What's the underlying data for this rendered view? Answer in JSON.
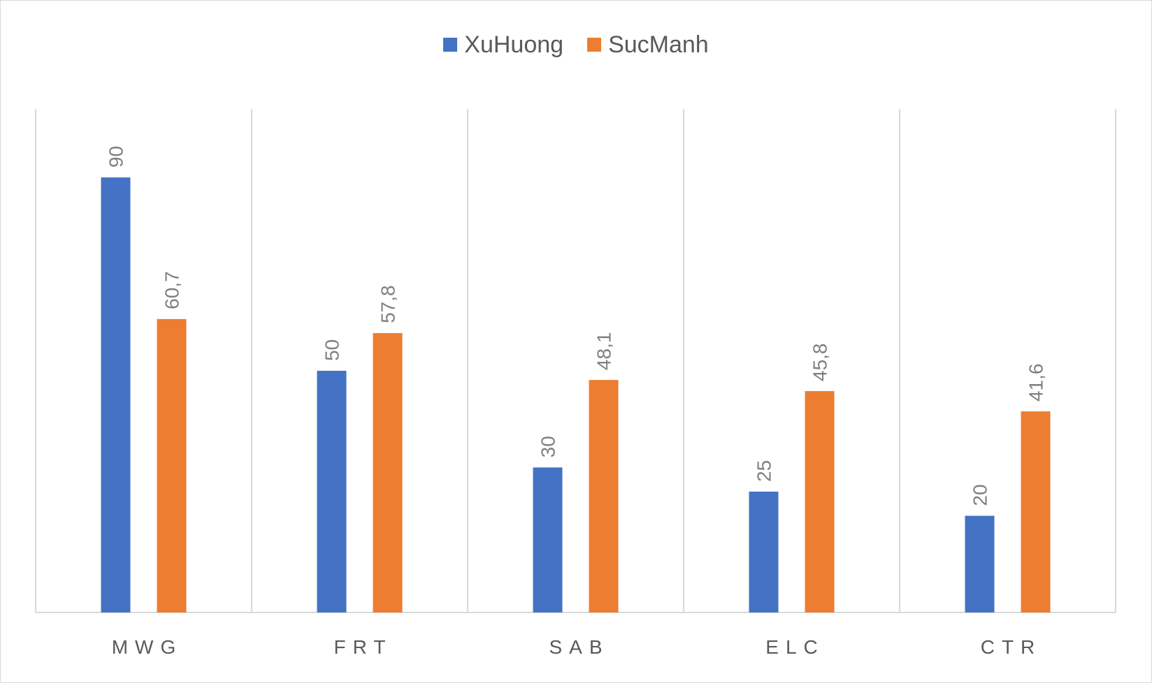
{
  "chart_data": {
    "type": "bar",
    "categories": [
      "MWG",
      "FRT",
      "SAB",
      "ELC",
      "CTR"
    ],
    "series": [
      {
        "name": "XuHuong",
        "color": "#4472c4",
        "values": [
          90,
          50,
          30,
          25,
          20
        ],
        "labels": [
          "90",
          "50",
          "30",
          "25",
          "20"
        ]
      },
      {
        "name": "SucManh",
        "color": "#ed7d31",
        "values": [
          60.7,
          57.8,
          48.1,
          45.8,
          41.6
        ],
        "labels": [
          "60,7",
          "57,8",
          "48,1",
          "45,8",
          "41,6"
        ]
      }
    ],
    "ylim": [
      0,
      100
    ],
    "legend": "top-center",
    "grid": "vertical category separators",
    "title": "",
    "xlabel": "",
    "ylabel": ""
  }
}
